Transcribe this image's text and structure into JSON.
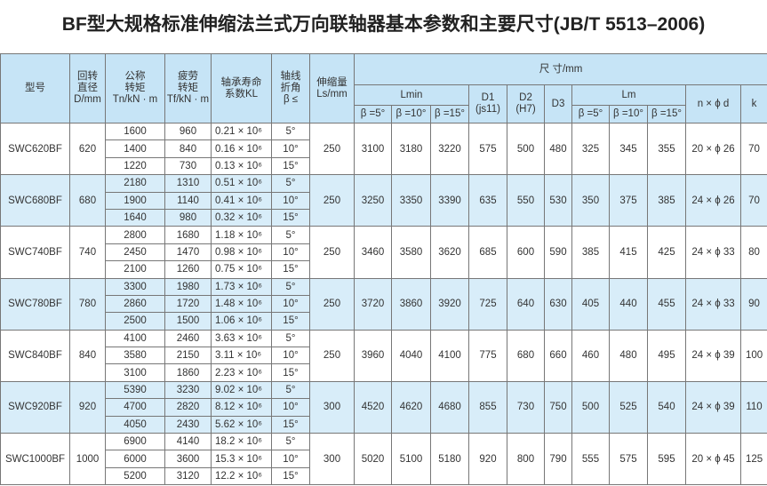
{
  "title": "BF型大规格标准伸缩法兰式万向联轴器基本参数和主要尺寸(JB/T 5513–2006)",
  "headers": {
    "model": "型号",
    "d": [
      "回转",
      "直径",
      "D/mm"
    ],
    "tn": [
      "公称",
      "转矩",
      "Tn/kN · m"
    ],
    "tf": [
      "疲劳",
      "转矩",
      "Tf/kN · m"
    ],
    "kl": [
      "轴承寿命",
      "系数KL"
    ],
    "beta": [
      "轴线",
      "折角",
      "β ≤"
    ],
    "ls": [
      "伸缩量",
      "Ls/mm"
    ],
    "dims": "尺 寸/mm",
    "lmin": "Lmin",
    "d1": [
      "D1",
      "(js11)"
    ],
    "d2": [
      "D2",
      "(H7)"
    ],
    "d3": "D3",
    "lm": "Lm",
    "nd": "n × ϕ d",
    "k": "k",
    "angles": [
      "β =5°",
      "β =10°",
      "β =15°"
    ]
  },
  "groups": [
    {
      "model": "SWC620BF",
      "d": "620",
      "ls": "250",
      "d1": "575",
      "d2": "500",
      "d3": "480",
      "nd": "20 × ϕ 26",
      "k": "70",
      "rows": [
        {
          "tn": "1600",
          "tf": "960",
          "kl": "0.21 × 10⁶",
          "beta": "5°",
          "lmin": "3100",
          "lm": "325"
        },
        {
          "tn": "1400",
          "tf": "840",
          "kl": "0.16 × 10⁶",
          "beta": "10°",
          "lmin": "3180",
          "lm": "345"
        },
        {
          "tn": "1220",
          "tf": "730",
          "kl": "0.13 × 10⁶",
          "beta": "15°",
          "lmin": "3220",
          "lm": "355"
        }
      ]
    },
    {
      "model": "SWC680BF",
      "d": "680",
      "ls": "250",
      "d1": "635",
      "d2": "550",
      "d3": "530",
      "nd": "24 × ϕ 26",
      "k": "70",
      "rows": [
        {
          "tn": "2180",
          "tf": "1310",
          "kl": "0.51 × 10⁶",
          "beta": "5°",
          "lmin": "3250",
          "lm": "350"
        },
        {
          "tn": "1900",
          "tf": "1140",
          "kl": "0.41 × 10⁶",
          "beta": "10°",
          "lmin": "3350",
          "lm": "375"
        },
        {
          "tn": "1640",
          "tf": "980",
          "kl": "0.32 × 10⁶",
          "beta": "15°",
          "lmin": "3390",
          "lm": "385"
        }
      ]
    },
    {
      "model": "SWC740BF",
      "d": "740",
      "ls": "250",
      "d1": "685",
      "d2": "600",
      "d3": "590",
      "nd": "24 × ϕ 33",
      "k": "80",
      "rows": [
        {
          "tn": "2800",
          "tf": "1680",
          "kl": "1.18 × 10⁶",
          "beta": "5°",
          "lmin": "3460",
          "lm": "385"
        },
        {
          "tn": "2450",
          "tf": "1470",
          "kl": "0.98 × 10⁶",
          "beta": "10°",
          "lmin": "3580",
          "lm": "415"
        },
        {
          "tn": "2100",
          "tf": "1260",
          "kl": "0.75 × 10⁶",
          "beta": "15°",
          "lmin": "3620",
          "lm": "425"
        }
      ]
    },
    {
      "model": "SWC780BF",
      "d": "780",
      "ls": "250",
      "d1": "725",
      "d2": "640",
      "d3": "630",
      "nd": "24 × ϕ 33",
      "k": "90",
      "rows": [
        {
          "tn": "3300",
          "tf": "1980",
          "kl": "1.73 × 10⁶",
          "beta": "5°",
          "lmin": "3720",
          "lm": "405"
        },
        {
          "tn": "2860",
          "tf": "1720",
          "kl": "1.48 × 10⁶",
          "beta": "10°",
          "lmin": "3860",
          "lm": "440"
        },
        {
          "tn": "2500",
          "tf": "1500",
          "kl": "1.06 × 10⁶",
          "beta": "15°",
          "lmin": "3920",
          "lm": "455"
        }
      ]
    },
    {
      "model": "SWC840BF",
      "d": "840",
      "ls": "250",
      "d1": "775",
      "d2": "680",
      "d3": "660",
      "nd": "24 × ϕ 39",
      "k": "100",
      "rows": [
        {
          "tn": "4100",
          "tf": "2460",
          "kl": "3.63 × 10⁶",
          "beta": "5°",
          "lmin": "3960",
          "lm": "460"
        },
        {
          "tn": "3580",
          "tf": "2150",
          "kl": "3.11 × 10⁶",
          "beta": "10°",
          "lmin": "4040",
          "lm": "480"
        },
        {
          "tn": "3100",
          "tf": "1860",
          "kl": "2.23 × 10⁶",
          "beta": "15°",
          "lmin": "4100",
          "lm": "495"
        }
      ]
    },
    {
      "model": "SWC920BF",
      "d": "920",
      "ls": "300",
      "d1": "855",
      "d2": "730",
      "d3": "750",
      "nd": "24 × ϕ 39",
      "k": "110",
      "rows": [
        {
          "tn": "5390",
          "tf": "3230",
          "kl": "9.02 × 10⁶",
          "beta": "5°",
          "lmin": "4520",
          "lm": "500"
        },
        {
          "tn": "4700",
          "tf": "2820",
          "kl": "8.12 × 10⁶",
          "beta": "10°",
          "lmin": "4620",
          "lm": "525"
        },
        {
          "tn": "4050",
          "tf": "2430",
          "kl": "5.62 × 10⁶",
          "beta": "15°",
          "lmin": "4680",
          "lm": "540"
        }
      ]
    },
    {
      "model": "SWC1000BF",
      "d": "1000",
      "ls": "300",
      "d1": "920",
      "d2": "800",
      "d3": "790",
      "nd": "20 × ϕ 45",
      "k": "125",
      "rows": [
        {
          "tn": "6900",
          "tf": "4140",
          "kl": "18.2 × 10⁶",
          "beta": "5°",
          "lmin": "5020",
          "lm": "555"
        },
        {
          "tn": "6000",
          "tf": "3600",
          "kl": "15.3 × 10⁶",
          "beta": "10°",
          "lmin": "5100",
          "lm": "575"
        },
        {
          "tn": "5200",
          "tf": "3120",
          "kl": "12.2 × 10⁶",
          "beta": "15°",
          "lmin": "5180",
          "lm": "595"
        }
      ]
    }
  ]
}
